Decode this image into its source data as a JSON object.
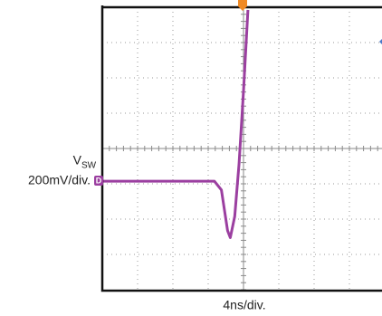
{
  "chart_data": {
    "type": "line",
    "y_label": "V",
    "y_label_sub": "SW",
    "y_scale_label": "200mV/div.",
    "x_scale_label": "4ns/div.",
    "channel_marker": "D",
    "x": [
      0,
      5,
      10,
      12.7,
      13.5,
      14.2,
      14.5,
      15.0,
      15.5,
      16.0,
      16.5
    ],
    "values": [
      0,
      0,
      0,
      0,
      -50,
      -280,
      -320,
      -200,
      100,
      510,
      970
    ],
    "color": "#9b3fa0",
    "xlim": [
      0,
      40
    ],
    "ylim": [
      -615,
      985
    ],
    "grid": true
  }
}
